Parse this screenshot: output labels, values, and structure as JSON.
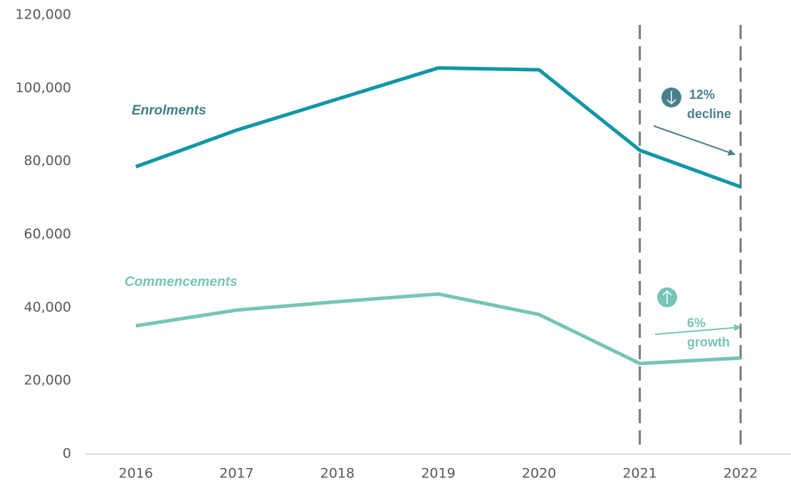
{
  "chart_data": {
    "type": "line",
    "categories": [
      "2016",
      "2017",
      "2018",
      "2019",
      "2020",
      "2021",
      "2022"
    ],
    "series": [
      {
        "name": "Enrolments",
        "color": "#0f97a6",
        "values": [
          78500,
          88500,
          97000,
          105500,
          105000,
          83000,
          73000
        ]
      },
      {
        "name": "Commencements",
        "color": "#76c5b5",
        "values": [
          35000,
          39300,
          41600,
          43700,
          38100,
          24700,
          26200
        ]
      }
    ],
    "ylim": [
      0,
      120000
    ],
    "yticks": [
      0,
      {
        "value": 20000,
        "label": "20,000"
      },
      {
        "value": 40000,
        "label": "40,000"
      },
      {
        "value": 60000,
        "label": "60,000"
      },
      {
        "value": 80000,
        "label": "80,000"
      },
      {
        "value": 100000,
        "label": "100,000"
      },
      {
        "value": 120000,
        "label": "120,000"
      }
    ],
    "grid": false,
    "annotations": [
      "12%",
      "decline",
      "6%",
      "growth"
    ]
  }
}
